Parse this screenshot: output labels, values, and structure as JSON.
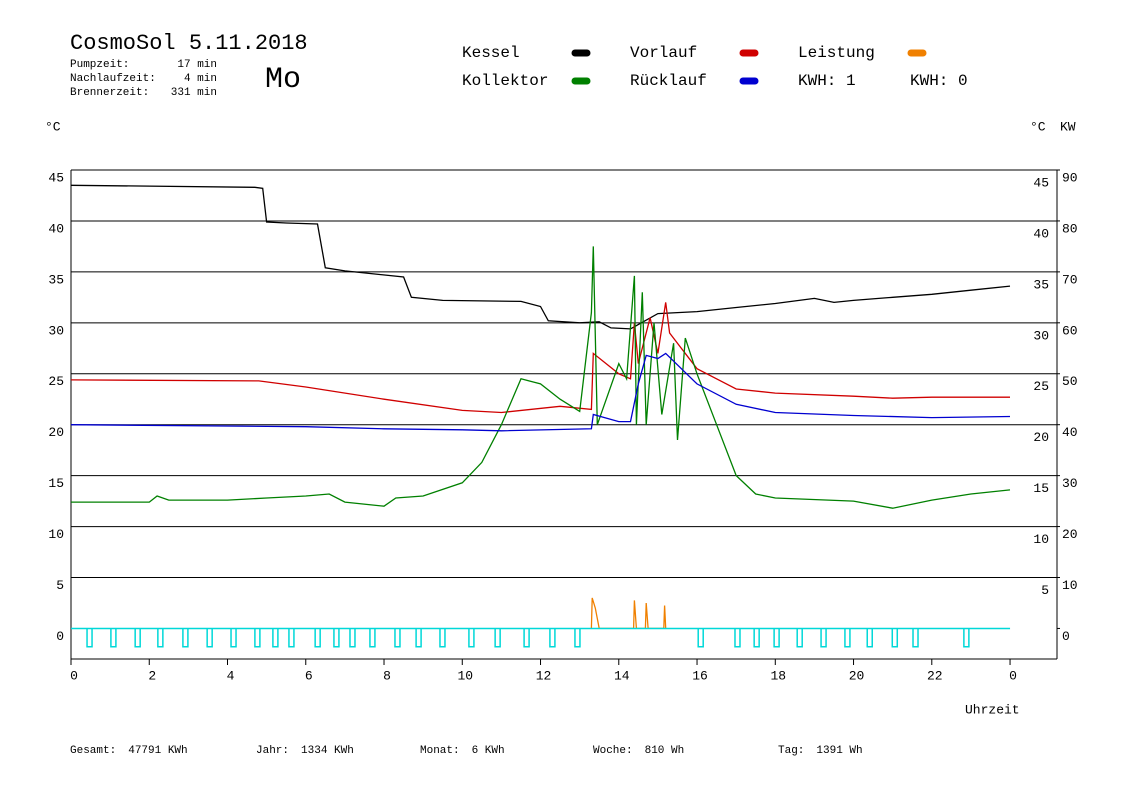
{
  "chart_data": {
    "type": "line",
    "title": "CosmoSol 5.11.2018",
    "day": "Mo",
    "stats": [
      {
        "label": "Pumpzeit:",
        "value": "17 min"
      },
      {
        "label": "Nachlaufzeit:",
        "value": "4 min"
      },
      {
        "label": "Brennerzeit:",
        "value": "331 min"
      }
    ],
    "y_unit": "°C",
    "y2_unit": "KW",
    "x_label": "Uhrzeit",
    "kwh": [
      {
        "text": "KWH: 1",
        "color": "#e08000"
      },
      {
        "text": "KWH: 0",
        "color": "#800080"
      }
    ],
    "footer": [
      {
        "label": "Gesamt:",
        "value": "47791 KWh"
      },
      {
        "label": "Jahr:",
        "value": "1334 KWh"
      },
      {
        "label": "Monat:",
        "value": "6 KWh"
      },
      {
        "label": "Woche:",
        "value": "810 Wh"
      },
      {
        "label": "Tag:",
        "value": "1391 Wh"
      }
    ],
    "xlim": [
      0,
      25.2
    ],
    "xticks": [
      0,
      2,
      4,
      6,
      8,
      10,
      12,
      14,
      16,
      18,
      20,
      22,
      {
        "value": 24,
        "label": "0"
      }
    ],
    "ylim": [
      -3,
      45
    ],
    "yticks": [
      0,
      5,
      10,
      15,
      20,
      25,
      30,
      35,
      40,
      45
    ],
    "y2lim": [
      -6,
      90
    ],
    "y2ticks": [
      0,
      10,
      20,
      30,
      40,
      50,
      60,
      70,
      80,
      90
    ],
    "grid": true,
    "series": [
      {
        "name": "Kessel",
        "color": "#000000",
        "x": [
          0,
          4.7,
          4.9,
          5.0,
          5.5,
          6.3,
          6.5,
          7,
          8.5,
          8.7,
          9.5,
          11.5,
          12.0,
          12.2,
          13.0,
          13.5,
          13.8,
          14.3,
          15.0,
          16,
          17,
          18,
          19,
          19.5,
          20,
          21,
          22,
          23,
          24
        ],
        "values": [
          43.5,
          43.3,
          43.2,
          39.9,
          39.8,
          39.7,
          35.4,
          35.1,
          34.5,
          32.5,
          32.2,
          32.1,
          31.6,
          30.2,
          30.0,
          30.1,
          29.5,
          29.4,
          30.9,
          31.1,
          31.5,
          31.9,
          32.4,
          32.0,
          32.2,
          32.5,
          32.8,
          33.2,
          33.6
        ]
      },
      {
        "name": "Vorlauf",
        "color": "#d00000",
        "x": [
          0,
          4.8,
          6,
          8,
          10,
          11,
          12.5,
          13.3,
          13.35,
          14.0,
          14.3,
          14.4,
          14.5,
          14.8,
          15.0,
          15.2,
          15.3,
          16,
          17,
          18,
          20,
          21,
          22,
          24
        ],
        "values": [
          24.4,
          24.3,
          23.7,
          22.5,
          21.4,
          21.2,
          21.8,
          21.5,
          27,
          25,
          24.5,
          30,
          26,
          30.5,
          27,
          32,
          29,
          25.5,
          23.5,
          23.1,
          22.8,
          22.6,
          22.7,
          22.7
        ]
      },
      {
        "name": "Leistung",
        "color": "#f08000",
        "axis": "y2",
        "x": [
          13.3,
          13.32,
          13.4,
          13.5,
          14.38,
          14.4,
          14.45,
          14.68,
          14.7,
          14.75,
          15.15,
          15.17,
          15.2
        ],
        "values": [
          0,
          6,
          4,
          0,
          0,
          5.5,
          0,
          0,
          5,
          0,
          0,
          4.5,
          0
        ]
      },
      {
        "name": "Kollektor",
        "color": "#008000",
        "x": [
          0,
          2,
          2.2,
          2.5,
          4,
          5,
          6,
          6.6,
          7,
          8,
          8.3,
          9,
          10,
          10.5,
          11,
          11.5,
          12,
          12.5,
          13.0,
          13.3,
          13.35,
          13.45,
          14.0,
          14.2,
          14.4,
          14.45,
          14.6,
          14.7,
          14.9,
          15.1,
          15.4,
          15.5,
          15.7,
          16,
          16.5,
          17,
          17.5,
          18,
          20,
          21,
          22,
          23,
          24
        ],
        "values": [
          12.4,
          12.4,
          13,
          12.6,
          12.6,
          12.8,
          13,
          13.2,
          12.4,
          12,
          12.8,
          13,
          14.3,
          16.3,
          20,
          24.5,
          24,
          22.5,
          21.3,
          31,
          37.5,
          20,
          26,
          24.5,
          34.6,
          20,
          33,
          20,
          30,
          21,
          28,
          18.5,
          28.5,
          25,
          20,
          15,
          13.2,
          12.8,
          12.5,
          11.8,
          12.6,
          13.2,
          13.6
        ]
      },
      {
        "name": "Rücklauf",
        "color": "#0000d0",
        "x": [
          0,
          6,
          8,
          10,
          11,
          13.3,
          13.35,
          14.0,
          14.3,
          14.5,
          14.7,
          15.0,
          15.2,
          16,
          17,
          18,
          20,
          22,
          24
        ],
        "values": [
          20.0,
          19.8,
          19.6,
          19.5,
          19.4,
          19.6,
          21,
          20.3,
          20.3,
          24,
          26.8,
          26.5,
          27,
          24,
          22,
          21.2,
          20.9,
          20.7,
          20.8
        ]
      },
      {
        "name": null,
        "color": "#00d8d8",
        "pulse": true,
        "x": [
          0.41,
          1.02,
          1.64,
          2.22,
          2.86,
          3.48,
          4.09,
          4.7,
          5.16,
          5.57,
          6.24,
          6.72,
          7.13,
          7.64,
          8.28,
          8.82,
          9.43,
          10.17,
          10.84,
          11.58,
          12.24,
          12.88,
          16.03,
          16.97,
          17.46,
          17.97,
          18.56,
          19.17,
          19.78,
          20.35,
          20.99,
          21.52,
          22.82
        ],
        "values": [
          -1.8,
          -1.8,
          -1.8,
          -1.8,
          -1.8,
          -1.8,
          -1.8,
          -1.8,
          -1.8,
          -1.8,
          -1.8,
          -1.8,
          -1.8,
          -1.8,
          -1.8,
          -1.8,
          -1.8,
          -1.8,
          -1.8,
          -1.8,
          -1.8,
          -1.8,
          -1.8,
          -1.8,
          -1.8,
          -1.8,
          -1.8,
          -1.8,
          -1.8,
          -1.8,
          -1.8,
          -1.8,
          -1.8
        ]
      }
    ]
  }
}
